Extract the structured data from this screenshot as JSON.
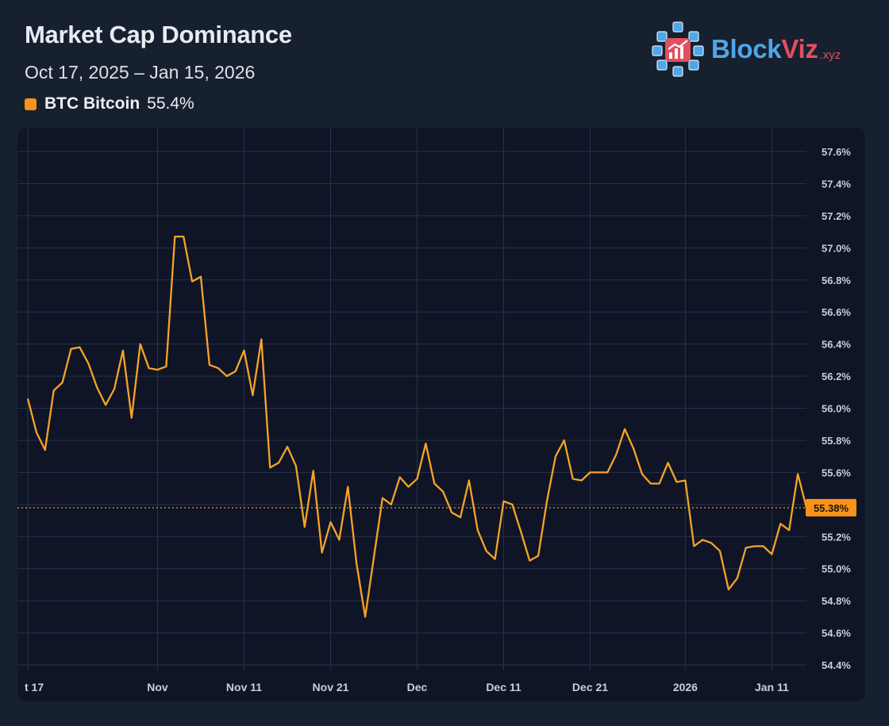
{
  "header": {
    "title": "Market Cap Dominance",
    "date_range": "Oct 17, 2025 – Jan 15, 2026",
    "legend": {
      "label": "BTC Bitcoin",
      "value": "55.4%",
      "color": "#f7931a"
    }
  },
  "logo": {
    "name_part1": "Block",
    "name_part2": "Viz",
    "suffix": ".xyz",
    "color1": "#4fa6e8",
    "color2": "#e04f62"
  },
  "colors": {
    "line": "#f7a326",
    "grid": "#283246",
    "axis_text": "#c9ced8",
    "badge": "#f7931a"
  },
  "chart_data": {
    "type": "line",
    "title": "Market Cap Dominance",
    "series": [
      {
        "name": "BTC Bitcoin",
        "x_start": "Oct 17, 2025",
        "x_end": "Jan 15, 2026",
        "values": [
          56.06,
          55.85,
          55.74,
          56.11,
          56.16,
          56.37,
          56.38,
          56.28,
          56.13,
          56.02,
          56.12,
          56.36,
          55.94,
          56.4,
          56.25,
          56.24,
          56.26,
          57.07,
          57.07,
          56.79,
          56.82,
          56.27,
          56.25,
          56.2,
          56.23,
          56.36,
          56.08,
          56.43,
          55.63,
          55.66,
          55.76,
          55.64,
          55.26,
          55.61,
          55.1,
          55.29,
          55.18,
          55.51,
          55.03,
          54.7,
          55.07,
          55.44,
          55.4,
          55.57,
          55.51,
          55.56,
          55.78,
          55.53,
          55.48,
          55.35,
          55.32,
          55.55,
          55.24,
          55.11,
          55.06,
          55.42,
          55.4,
          55.23,
          55.05,
          55.08,
          55.42,
          55.7,
          55.8,
          55.56,
          55.55,
          55.6,
          55.6,
          55.6,
          55.71,
          55.87,
          55.75,
          55.59,
          55.53,
          55.53,
          55.66,
          55.54,
          55.55,
          55.14,
          55.18,
          55.16,
          55.11,
          54.87,
          54.94,
          55.13,
          55.14,
          55.14,
          55.09,
          55.28,
          55.24,
          55.59,
          55.38
        ]
      }
    ],
    "current_value": 55.38,
    "current_label": "55.38%",
    "x_ticks": [
      {
        "label": "t 17",
        "day": 0
      },
      {
        "label": "Nov",
        "day": 15
      },
      {
        "label": "Nov 11",
        "day": 25
      },
      {
        "label": "Nov 21",
        "day": 35
      },
      {
        "label": "Dec",
        "day": 45
      },
      {
        "label": "Dec 11",
        "day": 55
      },
      {
        "label": "Dec 21",
        "day": 65
      },
      {
        "label": "2026",
        "day": 76
      },
      {
        "label": "Jan 11",
        "day": 86
      }
    ],
    "y_ticks": [
      "54.4%",
      "54.6%",
      "54.8%",
      "55.0%",
      "55.2%",
      "55.4%",
      "55.6%",
      "55.8%",
      "56.0%",
      "56.2%",
      "56.4%",
      "56.6%",
      "56.8%",
      "57.0%",
      "57.2%",
      "57.4%",
      "57.6%"
    ],
    "ylim": [
      54.4,
      57.6
    ],
    "xlabel": "",
    "ylabel": "",
    "grid": true
  }
}
